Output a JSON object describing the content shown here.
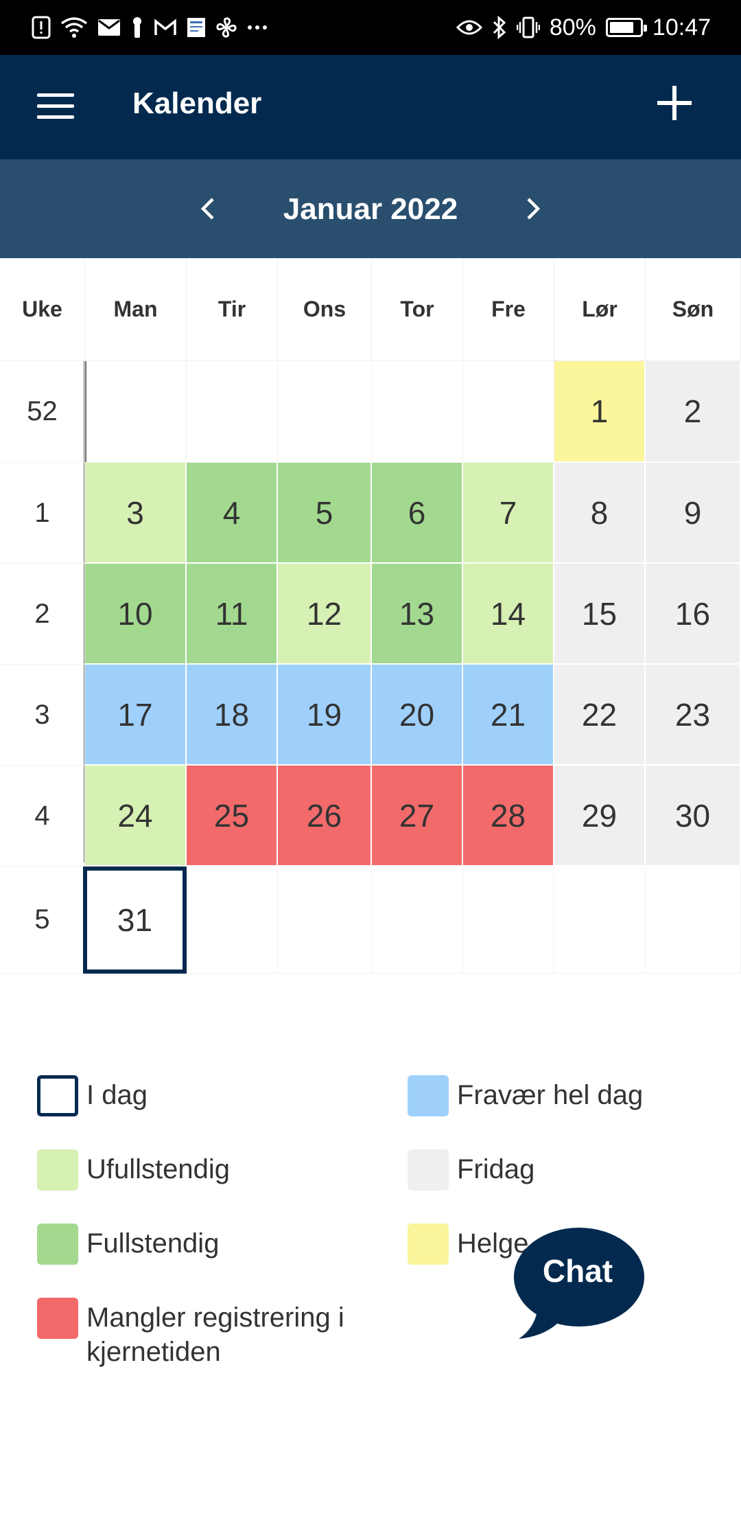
{
  "status_bar": {
    "battery": "80%",
    "time": "10:47",
    "battery_level": 0.8,
    "icons_left": [
      "alert-icon",
      "wifi-icon",
      "mail-icon",
      "key-icon",
      "gmail-icon",
      "newspaper-icon",
      "fan-icon",
      "more-icon"
    ],
    "icons_right": [
      "eye-icon",
      "bluetooth-icon",
      "vibrate-icon",
      "battery-icon"
    ]
  },
  "app_bar": {
    "title": "Kalender",
    "background": "#032a4e"
  },
  "month_nav": {
    "title": "Januar 2022",
    "background": "#2a4f6e"
  },
  "calendar": {
    "headers": [
      "Uke",
      "Man",
      "Tir",
      "Ons",
      "Tor",
      "Fre",
      "Lør",
      "Søn"
    ],
    "weeks": [
      {
        "week": "52",
        "days": [
          {
            "d": "",
            "s": "empty"
          },
          {
            "d": "",
            "s": "empty"
          },
          {
            "d": "",
            "s": "empty"
          },
          {
            "d": "",
            "s": "empty"
          },
          {
            "d": "",
            "s": "empty"
          },
          {
            "d": "1",
            "s": "holiday"
          },
          {
            "d": "2",
            "s": "dayoff"
          }
        ]
      },
      {
        "week": "1",
        "days": [
          {
            "d": "3",
            "s": "incomplete"
          },
          {
            "d": "4",
            "s": "complete"
          },
          {
            "d": "5",
            "s": "complete"
          },
          {
            "d": "6",
            "s": "complete"
          },
          {
            "d": "7",
            "s": "incomplete"
          },
          {
            "d": "8",
            "s": "dayoff"
          },
          {
            "d": "9",
            "s": "dayoff"
          }
        ]
      },
      {
        "week": "2",
        "days": [
          {
            "d": "10",
            "s": "complete"
          },
          {
            "d": "11",
            "s": "complete"
          },
          {
            "d": "12",
            "s": "incomplete"
          },
          {
            "d": "13",
            "s": "complete"
          },
          {
            "d": "14",
            "s": "incomplete"
          },
          {
            "d": "15",
            "s": "dayoff"
          },
          {
            "d": "16",
            "s": "dayoff"
          }
        ]
      },
      {
        "week": "3",
        "days": [
          {
            "d": "17",
            "s": "absence"
          },
          {
            "d": "18",
            "s": "absence"
          },
          {
            "d": "19",
            "s": "absence"
          },
          {
            "d": "20",
            "s": "absence"
          },
          {
            "d": "21",
            "s": "absence"
          },
          {
            "d": "22",
            "s": "dayoff"
          },
          {
            "d": "23",
            "s": "dayoff"
          }
        ]
      },
      {
        "week": "4",
        "days": [
          {
            "d": "24",
            "s": "incomplete"
          },
          {
            "d": "25",
            "s": "missing"
          },
          {
            "d": "26",
            "s": "missing"
          },
          {
            "d": "27",
            "s": "missing"
          },
          {
            "d": "28",
            "s": "missing"
          },
          {
            "d": "29",
            "s": "dayoff"
          },
          {
            "d": "30",
            "s": "dayoff"
          }
        ]
      },
      {
        "week": "5",
        "days": [
          {
            "d": "31",
            "s": "today"
          },
          {
            "d": "",
            "s": "empty"
          },
          {
            "d": "",
            "s": "empty"
          },
          {
            "d": "",
            "s": "empty"
          },
          {
            "d": "",
            "s": "empty"
          },
          {
            "d": "",
            "s": "empty"
          },
          {
            "d": "",
            "s": "empty"
          }
        ]
      }
    ]
  },
  "legend": {
    "items": [
      {
        "label": "I dag",
        "status": "today",
        "color": "#032a4e"
      },
      {
        "label": "Fravær hel dag",
        "status": "absence",
        "color": "#9fd0fc"
      },
      {
        "label": "Ufullstendig",
        "status": "incomplete",
        "color": "#d7f0b4"
      },
      {
        "label": "Fridag",
        "status": "dayoff",
        "color": "#efefef"
      },
      {
        "label": "Fullstendig",
        "status": "complete",
        "color": "#a3d98f"
      },
      {
        "label": "Helge",
        "status": "holiday",
        "color": "#fbf59b"
      },
      {
        "label": "Mangler registrering i kjernetiden",
        "status": "missing",
        "color": "#f26a6a"
      }
    ]
  },
  "chat": {
    "label": "Chat",
    "color": "#032a4e"
  }
}
